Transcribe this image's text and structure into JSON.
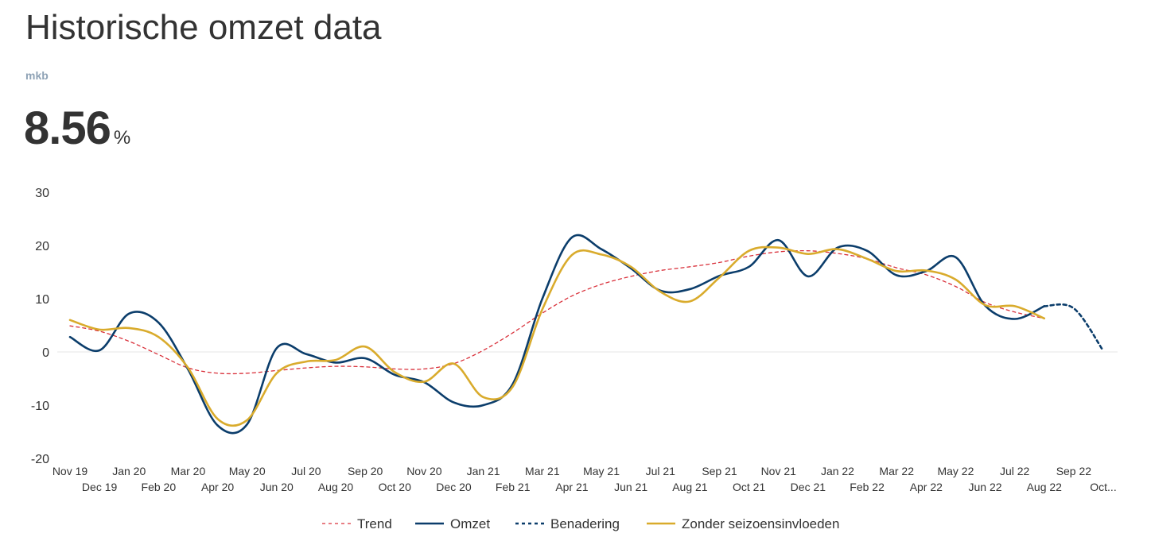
{
  "header": {
    "title": "Historische omzet data",
    "subtitle": "mkb",
    "kpi_value": "8.56",
    "kpi_unit": "%"
  },
  "colors": {
    "trend": "#d9303a",
    "omzet": "#0b3d6b",
    "benadering": "#0b3d6b",
    "zonder": "#d9ab2c",
    "zero_line": "#e6e6e6"
  },
  "chart_data": {
    "type": "line",
    "title": "Historische omzet data",
    "ylim": [
      -20,
      30
    ],
    "yticks": [
      30,
      20,
      10,
      0,
      -10,
      -20
    ],
    "grid": false,
    "legend_position": "bottom-center",
    "categories": [
      "Nov 19",
      "Dec 19",
      "Jan 20",
      "Feb 20",
      "Mar 20",
      "Apr 20",
      "May 20",
      "Jun 20",
      "Jul 20",
      "Aug 20",
      "Sep 20",
      "Oct 20",
      "Nov 20",
      "Dec 20",
      "Jan 21",
      "Feb 21",
      "Mar 21",
      "Apr 21",
      "May 21",
      "Jun 21",
      "Jul 21",
      "Aug 21",
      "Sep 21",
      "Oct 21",
      "Nov 21",
      "Dec 21",
      "Jan 22",
      "Feb 22",
      "Mar 22",
      "Apr 22",
      "May 22",
      "Jun 22",
      "Jul 22",
      "Aug 22",
      "Sep 22",
      "Oct..."
    ],
    "series": [
      {
        "name": "Trend",
        "style": "dashed",
        "values": [
          4.9,
          3.9,
          2.0,
          -0.5,
          -3.0,
          -4.0,
          -4.0,
          -3.5,
          -3.0,
          -2.7,
          -2.8,
          -3.2,
          -3.2,
          -2.2,
          0.3,
          3.6,
          7.3,
          10.5,
          12.7,
          14.2,
          15.3,
          16.0,
          16.8,
          18.0,
          18.8,
          19.0,
          18.5,
          17.5,
          15.8,
          14.5,
          12.3,
          9.3,
          7.5,
          6.3,
          null,
          null
        ]
      },
      {
        "name": "Omzet",
        "style": "solid",
        "values": [
          2.8,
          0.3,
          7.2,
          5.5,
          -3.3,
          -13.8,
          -13.6,
          0.7,
          -0.4,
          -2.0,
          -1.2,
          -4.3,
          -5.7,
          -9.5,
          -10.0,
          -6.0,
          10.0,
          21.5,
          19.3,
          15.7,
          11.5,
          11.8,
          14.3,
          16.0,
          21.0,
          14.2,
          19.6,
          19.0,
          14.4,
          15.2,
          17.8,
          8.7,
          6.2,
          8.6,
          null,
          null
        ]
      },
      {
        "name": "Benadering",
        "style": "dotted",
        "values": [
          null,
          null,
          null,
          null,
          null,
          null,
          null,
          null,
          null,
          null,
          null,
          null,
          null,
          null,
          null,
          null,
          null,
          null,
          null,
          null,
          null,
          null,
          null,
          null,
          null,
          null,
          null,
          null,
          null,
          null,
          null,
          null,
          null,
          8.6,
          8.2,
          0.2
        ]
      },
      {
        "name": "Zonder seizoensinvloeden",
        "style": "solid",
        "values": [
          6.0,
          4.2,
          4.5,
          2.8,
          -3.0,
          -12.6,
          -12.8,
          -4.0,
          -1.8,
          -1.5,
          1.0,
          -3.8,
          -5.6,
          -2.2,
          -8.5,
          -6.5,
          8.0,
          18.2,
          18.3,
          16.0,
          11.3,
          9.5,
          14.0,
          19.0,
          19.6,
          18.4,
          19.3,
          17.5,
          15.2,
          15.3,
          13.6,
          8.8,
          8.6,
          6.3,
          null,
          null
        ]
      }
    ]
  }
}
